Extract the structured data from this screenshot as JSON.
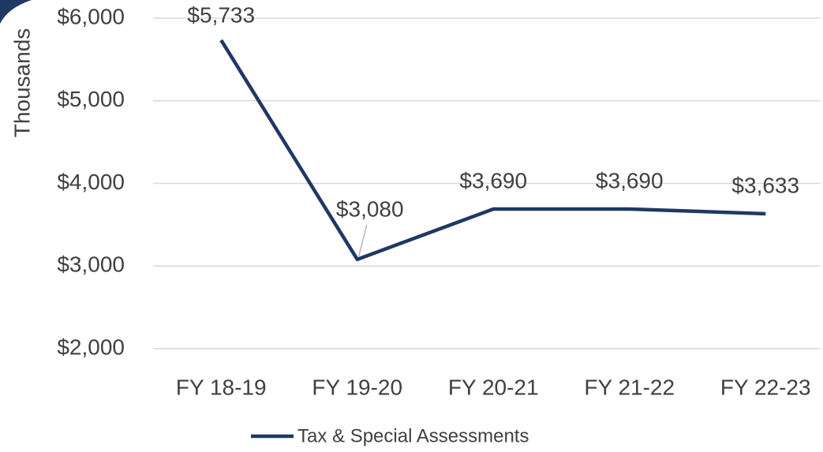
{
  "chart_data": {
    "type": "line",
    "y_axis_label": "Thousands",
    "categories": [
      "FY 18-19",
      "FY 19-20",
      "FY 20-21",
      "FY 21-22",
      "FY 22-23"
    ],
    "series": [
      {
        "name": "Tax & Special Assessments",
        "color": "#1f3864",
        "values": [
          5733,
          3080,
          3690,
          3690,
          3633
        ],
        "value_labels": [
          "$5,733",
          "$3,080",
          "$3,690",
          "$3,690",
          "$3,633"
        ]
      }
    ],
    "ylim": [
      2000,
      6000
    ],
    "yticks": [
      {
        "value": 2000,
        "label": "$2,000"
      },
      {
        "value": 3000,
        "label": "$3,000"
      },
      {
        "value": 4000,
        "label": "$4,000"
      },
      {
        "value": 5000,
        "label": "$5,000"
      },
      {
        "value": 6000,
        "label": "$6,000"
      }
    ],
    "grid": true,
    "legend": "bottom"
  }
}
